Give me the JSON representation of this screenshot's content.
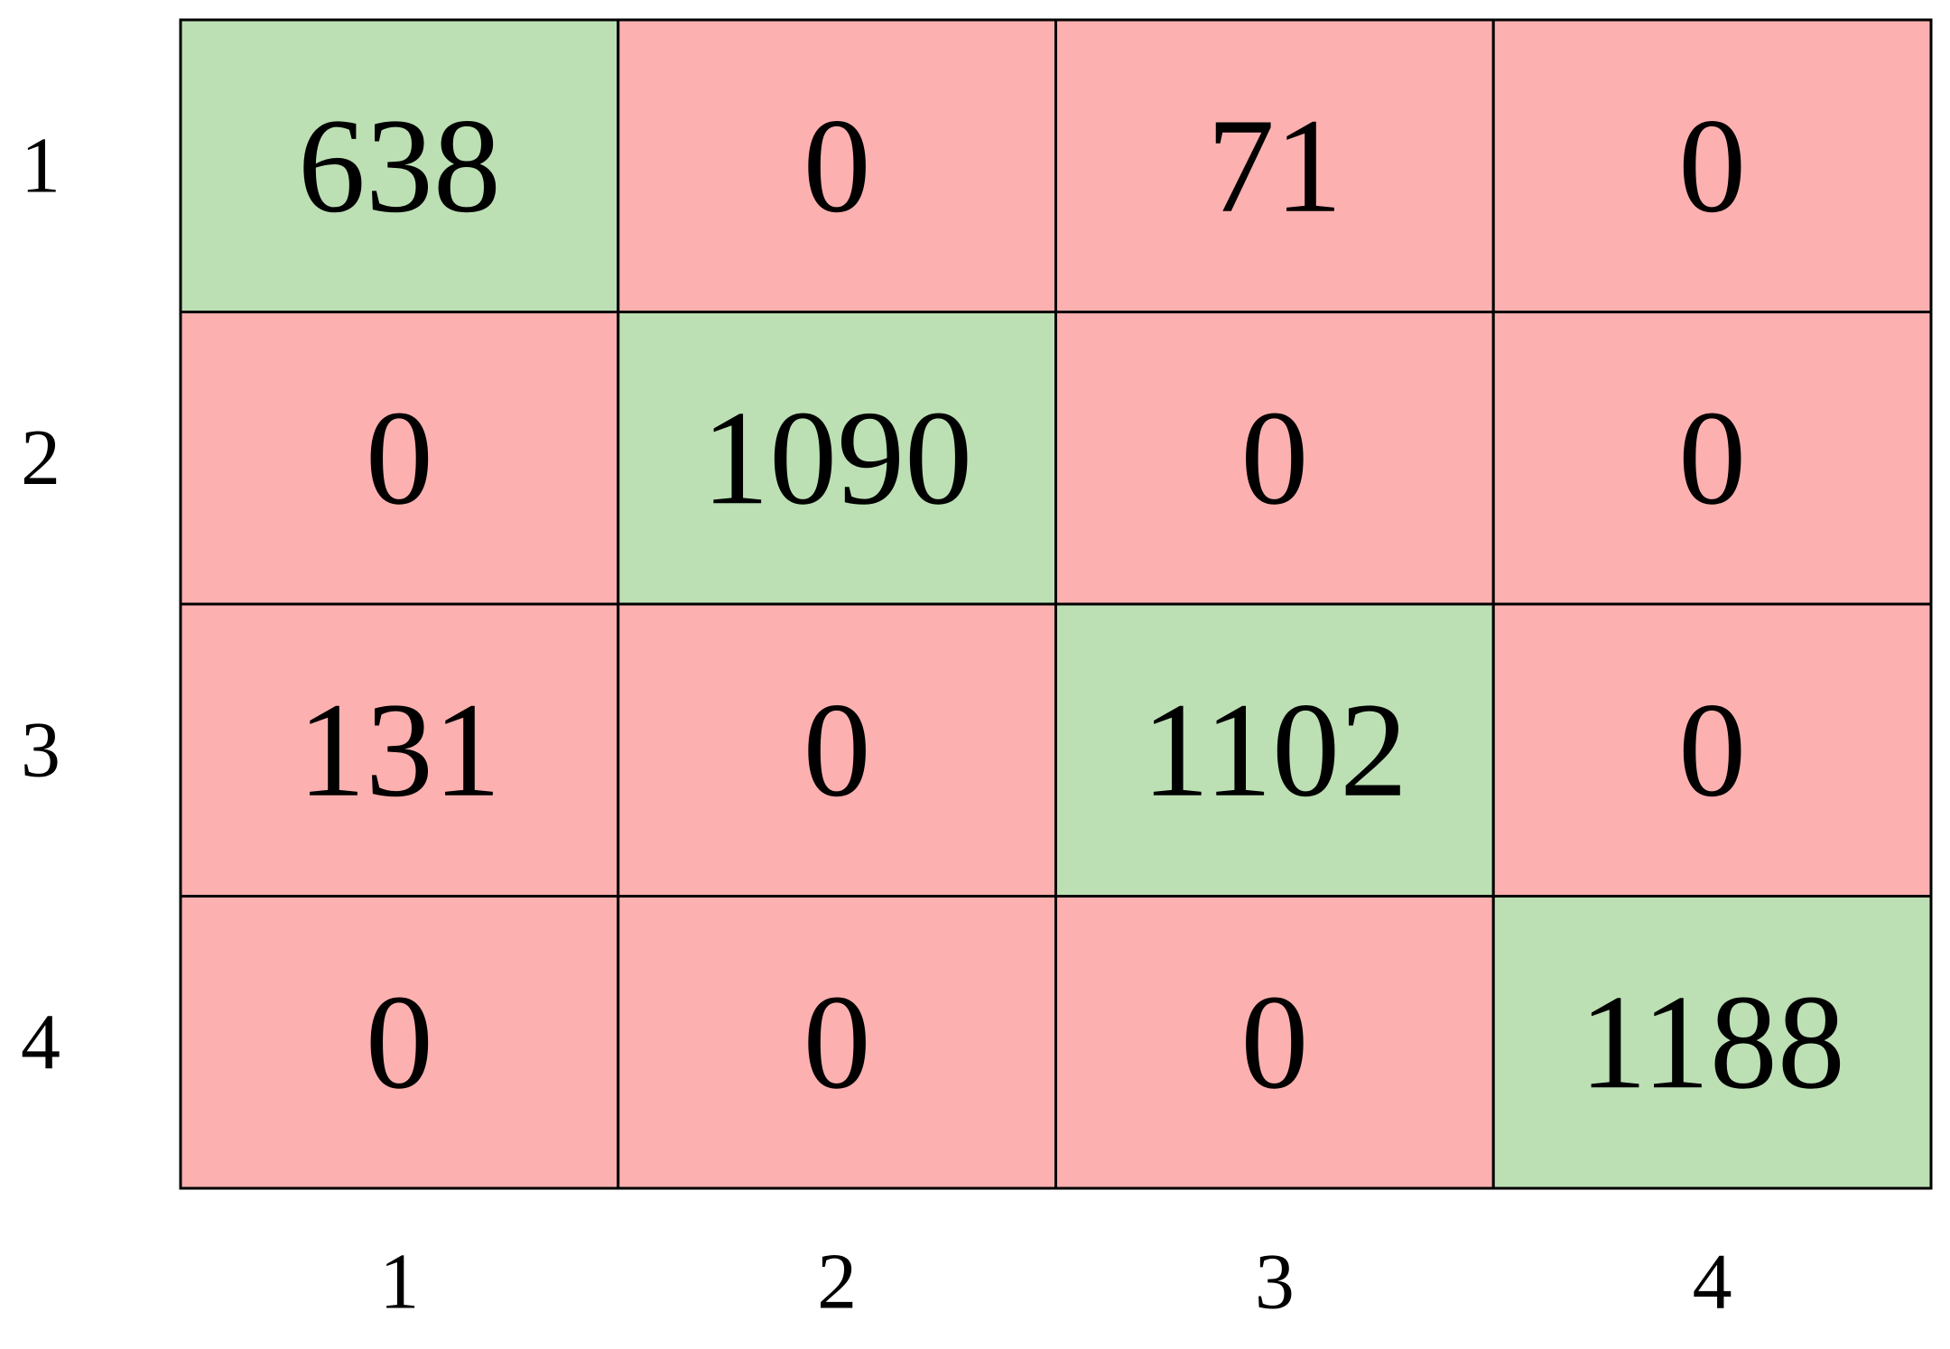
{
  "chart_data": {
    "type": "heatmap",
    "x_categories": [
      "1",
      "2",
      "3",
      "4"
    ],
    "y_categories": [
      "1",
      "2",
      "3",
      "4"
    ],
    "values": [
      [
        638,
        0,
        71,
        0
      ],
      [
        0,
        1090,
        0,
        0
      ],
      [
        131,
        0,
        1102,
        0
      ],
      [
        0,
        0,
        0,
        1188
      ]
    ],
    "colors": {
      "diagonal": "#bce0b4",
      "off_diagonal": "#fdb0b0"
    }
  }
}
